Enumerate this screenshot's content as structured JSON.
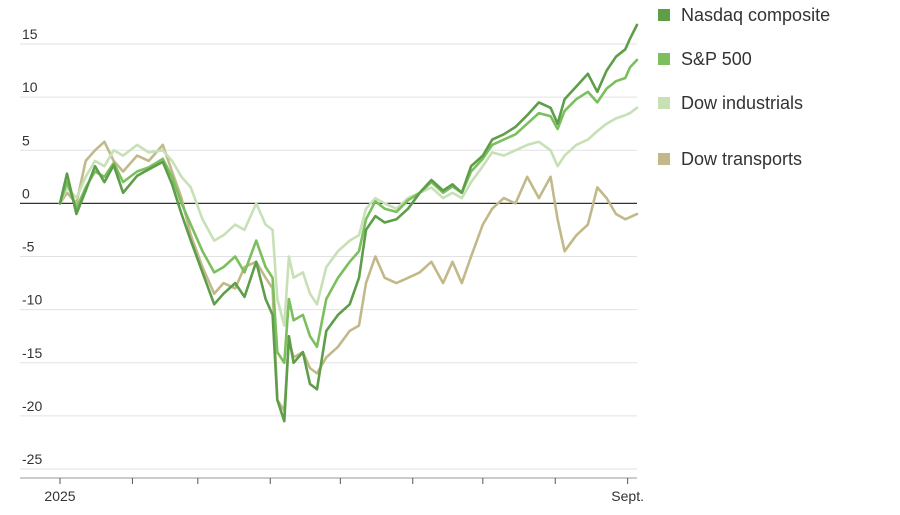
{
  "chart_data": {
    "type": "line",
    "title": "",
    "xlabel": "",
    "ylabel": "",
    "ylim": [
      -25,
      18
    ],
    "x_ticks": [
      {
        "label": "2025",
        "date": "2025-01-01"
      },
      {
        "label": "",
        "date": "2025-02-01"
      },
      {
        "label": "",
        "date": "2025-03-01"
      },
      {
        "label": "",
        "date": "2025-04-01"
      },
      {
        "label": "",
        "date": "2025-05-01"
      },
      {
        "label": "",
        "date": "2025-06-01"
      },
      {
        "label": "",
        "date": "2025-07-01"
      },
      {
        "label": "",
        "date": "2025-08-01"
      },
      {
        "label": "Sept.",
        "date": "2025-09-01"
      }
    ],
    "y_ticks": [
      15,
      10,
      5,
      0,
      -5,
      -10,
      -15,
      -20,
      -25
    ],
    "y_tick_labels": [
      "15",
      "10",
      "5",
      "0",
      "-5",
      "-10",
      "-15",
      "-20",
      "-25"
    ],
    "x_range": [
      "2025-01-01",
      "2025-09-05"
    ],
    "grid": true,
    "legend_position": "right",
    "series": [
      {
        "name": "Nasdaq composite",
        "color": "#5e9e4a",
        "points": [
          [
            "2025-01-01",
            0
          ],
          [
            "2025-01-04",
            2.8
          ],
          [
            "2025-01-08",
            -1.0
          ],
          [
            "2025-01-12",
            1.2
          ],
          [
            "2025-01-16",
            3.5
          ],
          [
            "2025-01-20",
            2.0
          ],
          [
            "2025-01-24",
            3.6
          ],
          [
            "2025-01-28",
            1.0
          ],
          [
            "2025-02-03",
            2.6
          ],
          [
            "2025-02-08",
            3.2
          ],
          [
            "2025-02-14",
            3.9
          ],
          [
            "2025-02-18",
            1.8
          ],
          [
            "2025-02-22",
            -1.0
          ],
          [
            "2025-02-26",
            -3.5
          ],
          [
            "2025-03-03",
            -6.5
          ],
          [
            "2025-03-08",
            -9.5
          ],
          [
            "2025-03-12",
            -8.5
          ],
          [
            "2025-03-17",
            -7.5
          ],
          [
            "2025-03-21",
            -8.8
          ],
          [
            "2025-03-26",
            -5.5
          ],
          [
            "2025-03-30",
            -9.0
          ],
          [
            "2025-04-02",
            -10.5
          ],
          [
            "2025-04-04",
            -18.5
          ],
          [
            "2025-04-07",
            -20.5
          ],
          [
            "2025-04-09",
            -12.5
          ],
          [
            "2025-04-11",
            -15.0
          ],
          [
            "2025-04-15",
            -14.0
          ],
          [
            "2025-04-18",
            -17.0
          ],
          [
            "2025-04-21",
            -17.5
          ],
          [
            "2025-04-25",
            -12.0
          ],
          [
            "2025-04-30",
            -10.5
          ],
          [
            "2025-05-05",
            -9.5
          ],
          [
            "2025-05-09",
            -7.0
          ],
          [
            "2025-05-12",
            -2.5
          ],
          [
            "2025-05-16",
            -1.2
          ],
          [
            "2025-05-20",
            -1.8
          ],
          [
            "2025-05-25",
            -1.5
          ],
          [
            "2025-05-30",
            -0.5
          ],
          [
            "2025-06-04",
            1.0
          ],
          [
            "2025-06-09",
            2.2
          ],
          [
            "2025-06-14",
            1.2
          ],
          [
            "2025-06-18",
            1.8
          ],
          [
            "2025-06-22",
            1.0
          ],
          [
            "2025-06-26",
            3.5
          ],
          [
            "2025-07-01",
            4.5
          ],
          [
            "2025-07-05",
            6.0
          ],
          [
            "2025-07-10",
            6.5
          ],
          [
            "2025-07-15",
            7.2
          ],
          [
            "2025-07-20",
            8.3
          ],
          [
            "2025-07-25",
            9.5
          ],
          [
            "2025-07-30",
            9.0
          ],
          [
            "2025-08-02",
            7.5
          ],
          [
            "2025-08-05",
            9.8
          ],
          [
            "2025-08-10",
            11.0
          ],
          [
            "2025-08-15",
            12.2
          ],
          [
            "2025-08-19",
            10.5
          ],
          [
            "2025-08-23",
            12.5
          ],
          [
            "2025-08-27",
            13.8
          ],
          [
            "2025-08-31",
            14.5
          ],
          [
            "2025-09-02",
            15.5
          ],
          [
            "2025-09-05",
            16.8
          ]
        ]
      },
      {
        "name": "S&P 500",
        "color": "#7bbf5e",
        "points": [
          [
            "2025-01-01",
            0
          ],
          [
            "2025-01-04",
            2.0
          ],
          [
            "2025-01-08",
            -0.5
          ],
          [
            "2025-01-12",
            1.5
          ],
          [
            "2025-01-16",
            3.0
          ],
          [
            "2025-01-20",
            2.5
          ],
          [
            "2025-01-24",
            3.8
          ],
          [
            "2025-01-28",
            2.0
          ],
          [
            "2025-02-03",
            3.0
          ],
          [
            "2025-02-08",
            3.4
          ],
          [
            "2025-02-14",
            4.2
          ],
          [
            "2025-02-18",
            2.5
          ],
          [
            "2025-02-22",
            0.0
          ],
          [
            "2025-02-26",
            -2.0
          ],
          [
            "2025-03-03",
            -4.5
          ],
          [
            "2025-03-08",
            -6.5
          ],
          [
            "2025-03-12",
            -6.0
          ],
          [
            "2025-03-17",
            -5.0
          ],
          [
            "2025-03-21",
            -6.5
          ],
          [
            "2025-03-26",
            -3.5
          ],
          [
            "2025-03-30",
            -6.0
          ],
          [
            "2025-04-02",
            -7.0
          ],
          [
            "2025-04-04",
            -14.0
          ],
          [
            "2025-04-07",
            -15.0
          ],
          [
            "2025-04-09",
            -9.0
          ],
          [
            "2025-04-11",
            -11.0
          ],
          [
            "2025-04-15",
            -10.5
          ],
          [
            "2025-04-18",
            -12.5
          ],
          [
            "2025-04-21",
            -13.5
          ],
          [
            "2025-04-25",
            -9.0
          ],
          [
            "2025-04-30",
            -7.0
          ],
          [
            "2025-05-05",
            -5.5
          ],
          [
            "2025-05-09",
            -4.5
          ],
          [
            "2025-05-12",
            -1.5
          ],
          [
            "2025-05-16",
            0.2
          ],
          [
            "2025-05-20",
            -0.5
          ],
          [
            "2025-05-25",
            -0.8
          ],
          [
            "2025-05-30",
            0.3
          ],
          [
            "2025-06-04",
            1.0
          ],
          [
            "2025-06-09",
            2.0
          ],
          [
            "2025-06-14",
            1.0
          ],
          [
            "2025-06-18",
            1.6
          ],
          [
            "2025-06-22",
            1.0
          ],
          [
            "2025-06-26",
            3.0
          ],
          [
            "2025-07-01",
            4.2
          ],
          [
            "2025-07-05",
            5.5
          ],
          [
            "2025-07-10",
            6.0
          ],
          [
            "2025-07-15",
            6.5
          ],
          [
            "2025-07-20",
            7.5
          ],
          [
            "2025-07-25",
            8.5
          ],
          [
            "2025-07-30",
            8.2
          ],
          [
            "2025-08-02",
            7.0
          ],
          [
            "2025-08-05",
            8.7
          ],
          [
            "2025-08-10",
            9.8
          ],
          [
            "2025-08-15",
            10.5
          ],
          [
            "2025-08-19",
            9.5
          ],
          [
            "2025-08-23",
            10.8
          ],
          [
            "2025-08-27",
            11.5
          ],
          [
            "2025-08-31",
            11.8
          ],
          [
            "2025-09-02",
            12.8
          ],
          [
            "2025-09-05",
            13.5
          ]
        ]
      },
      {
        "name": "Dow industrials",
        "color": "#c7e0b6",
        "points": [
          [
            "2025-01-01",
            0
          ],
          [
            "2025-01-04",
            1.5
          ],
          [
            "2025-01-08",
            0.5
          ],
          [
            "2025-01-12",
            2.5
          ],
          [
            "2025-01-16",
            4.0
          ],
          [
            "2025-01-20",
            3.5
          ],
          [
            "2025-01-24",
            5.0
          ],
          [
            "2025-01-28",
            4.5
          ],
          [
            "2025-02-03",
            5.5
          ],
          [
            "2025-02-08",
            4.8
          ],
          [
            "2025-02-14",
            5.0
          ],
          [
            "2025-02-18",
            4.0
          ],
          [
            "2025-02-22",
            2.5
          ],
          [
            "2025-02-26",
            1.5
          ],
          [
            "2025-03-03",
            -1.5
          ],
          [
            "2025-03-08",
            -3.5
          ],
          [
            "2025-03-12",
            -3.0
          ],
          [
            "2025-03-17",
            -2.0
          ],
          [
            "2025-03-21",
            -2.5
          ],
          [
            "2025-03-26",
            0.0
          ],
          [
            "2025-03-30",
            -2.0
          ],
          [
            "2025-04-02",
            -2.5
          ],
          [
            "2025-04-04",
            -9.0
          ],
          [
            "2025-04-07",
            -11.5
          ],
          [
            "2025-04-09",
            -5.0
          ],
          [
            "2025-04-11",
            -7.0
          ],
          [
            "2025-04-15",
            -6.5
          ],
          [
            "2025-04-18",
            -8.5
          ],
          [
            "2025-04-21",
            -9.5
          ],
          [
            "2025-04-25",
            -6.0
          ],
          [
            "2025-04-30",
            -4.5
          ],
          [
            "2025-05-05",
            -3.5
          ],
          [
            "2025-05-09",
            -3.0
          ],
          [
            "2025-05-12",
            -0.5
          ],
          [
            "2025-05-16",
            0.5
          ],
          [
            "2025-05-20",
            0.0
          ],
          [
            "2025-05-25",
            -0.5
          ],
          [
            "2025-05-30",
            0.5
          ],
          [
            "2025-06-04",
            1.0
          ],
          [
            "2025-06-09",
            1.5
          ],
          [
            "2025-06-14",
            0.5
          ],
          [
            "2025-06-18",
            1.0
          ],
          [
            "2025-06-22",
            0.5
          ],
          [
            "2025-06-26",
            2.0
          ],
          [
            "2025-07-01",
            3.5
          ],
          [
            "2025-07-05",
            4.8
          ],
          [
            "2025-07-10",
            4.5
          ],
          [
            "2025-07-15",
            5.0
          ],
          [
            "2025-07-20",
            5.5
          ],
          [
            "2025-07-25",
            5.8
          ],
          [
            "2025-07-30",
            5.0
          ],
          [
            "2025-08-02",
            3.5
          ],
          [
            "2025-08-05",
            4.5
          ],
          [
            "2025-08-10",
            5.5
          ],
          [
            "2025-08-15",
            6.0
          ],
          [
            "2025-08-19",
            6.8
          ],
          [
            "2025-08-23",
            7.5
          ],
          [
            "2025-08-27",
            8.0
          ],
          [
            "2025-08-31",
            8.3
          ],
          [
            "2025-09-02",
            8.5
          ],
          [
            "2025-09-05",
            9.0
          ]
        ]
      },
      {
        "name": "Dow transports",
        "color": "#c2b98a",
        "points": [
          [
            "2025-01-01",
            0
          ],
          [
            "2025-01-04",
            1.0
          ],
          [
            "2025-01-08",
            0.0
          ],
          [
            "2025-01-12",
            4.0
          ],
          [
            "2025-01-16",
            5.0
          ],
          [
            "2025-01-20",
            5.8
          ],
          [
            "2025-01-24",
            4.0
          ],
          [
            "2025-01-28",
            3.0
          ],
          [
            "2025-02-03",
            4.5
          ],
          [
            "2025-02-08",
            4.0
          ],
          [
            "2025-02-14",
            5.5
          ],
          [
            "2025-02-18",
            3.0
          ],
          [
            "2025-02-22",
            0.5
          ],
          [
            "2025-02-26",
            -3.0
          ],
          [
            "2025-03-03",
            -6.0
          ],
          [
            "2025-03-08",
            -8.5
          ],
          [
            "2025-03-12",
            -7.5
          ],
          [
            "2025-03-17",
            -8.0
          ],
          [
            "2025-03-21",
            -6.0
          ],
          [
            "2025-03-26",
            -5.5
          ],
          [
            "2025-03-30",
            -7.0
          ],
          [
            "2025-04-02",
            -8.0
          ],
          [
            "2025-04-04",
            -18.5
          ],
          [
            "2025-04-07",
            -19.5
          ],
          [
            "2025-04-09",
            -13.0
          ],
          [
            "2025-04-11",
            -14.5
          ],
          [
            "2025-04-15",
            -14.0
          ],
          [
            "2025-04-18",
            -15.5
          ],
          [
            "2025-04-21",
            -16.0
          ],
          [
            "2025-04-25",
            -14.5
          ],
          [
            "2025-04-30",
            -13.5
          ],
          [
            "2025-05-05",
            -12.0
          ],
          [
            "2025-05-09",
            -11.5
          ],
          [
            "2025-05-12",
            -7.5
          ],
          [
            "2025-05-16",
            -5.0
          ],
          [
            "2025-05-20",
            -7.0
          ],
          [
            "2025-05-25",
            -7.5
          ],
          [
            "2025-05-30",
            -7.0
          ],
          [
            "2025-06-04",
            -6.5
          ],
          [
            "2025-06-09",
            -5.5
          ],
          [
            "2025-06-14",
            -7.5
          ],
          [
            "2025-06-18",
            -5.5
          ],
          [
            "2025-06-22",
            -7.5
          ],
          [
            "2025-06-26",
            -5.0
          ],
          [
            "2025-07-01",
            -2.0
          ],
          [
            "2025-07-05",
            -0.5
          ],
          [
            "2025-07-10",
            0.5
          ],
          [
            "2025-07-15",
            0.0
          ],
          [
            "2025-07-20",
            2.5
          ],
          [
            "2025-07-25",
            0.5
          ],
          [
            "2025-07-30",
            2.5
          ],
          [
            "2025-08-02",
            -1.5
          ],
          [
            "2025-08-05",
            -4.5
          ],
          [
            "2025-08-10",
            -3.0
          ],
          [
            "2025-08-15",
            -2.0
          ],
          [
            "2025-08-19",
            1.5
          ],
          [
            "2025-08-23",
            0.5
          ],
          [
            "2025-08-27",
            -1.0
          ],
          [
            "2025-08-31",
            -1.5
          ],
          [
            "2025-09-02",
            -1.3
          ],
          [
            "2025-09-05",
            -1.0
          ]
        ]
      }
    ]
  }
}
